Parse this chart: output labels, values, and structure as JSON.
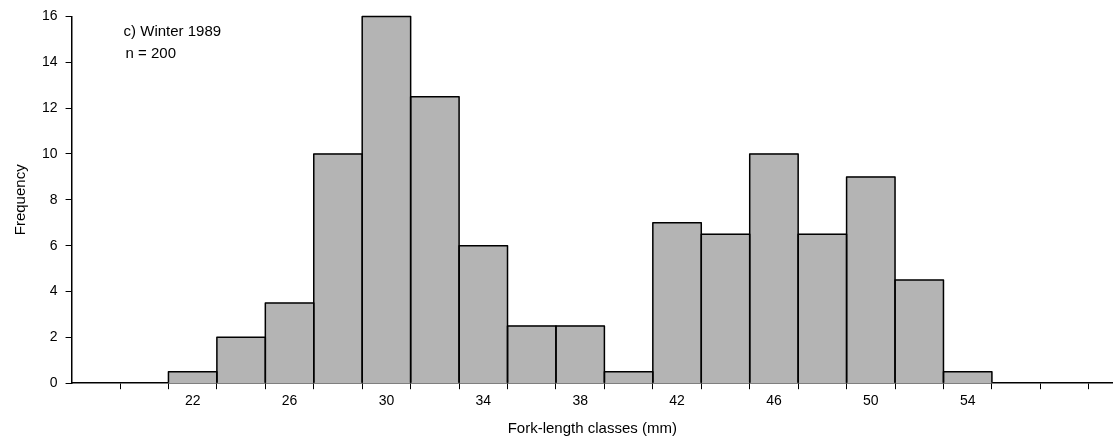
{
  "chart_data": {
    "type": "histogram",
    "xlabel": "Fork-length classes (mm)",
    "ylabel": "Frequency",
    "annotations": [
      "c) Winter 1989",
      "n = 200"
    ],
    "bins": [
      21,
      23,
      25,
      27,
      29,
      31,
      33,
      35,
      37,
      39,
      41,
      43,
      45,
      47,
      49,
      51,
      53,
      55
    ],
    "values": [
      0.5,
      2,
      3.5,
      10,
      16,
      12.5,
      6,
      2.5,
      2.5,
      0.5,
      7,
      6.5,
      10,
      6.5,
      9,
      4.5,
      0.5
    ],
    "color": "#b4b4b4",
    "xlim": [
      17,
      60
    ],
    "xticks": [
      {
        "value": 19,
        "label": null
      },
      {
        "value": 21,
        "label": null
      },
      22,
      {
        "value": 23,
        "label": null
      },
      {
        "value": 25,
        "label": null
      },
      26,
      {
        "value": 27,
        "label": null
      },
      {
        "value": 29,
        "label": null
      },
      30,
      {
        "value": 31,
        "label": null
      },
      {
        "value": 33,
        "label": null
      },
      34,
      {
        "value": 35,
        "label": null
      },
      {
        "value": 37,
        "label": null
      },
      38,
      {
        "value": 39,
        "label": null
      },
      {
        "value": 41,
        "label": null
      },
      42,
      {
        "value": 43,
        "label": null
      },
      {
        "value": 45,
        "label": null
      },
      46,
      {
        "value": 47,
        "label": null
      },
      {
        "value": 49,
        "label": null
      },
      50,
      {
        "value": 51,
        "label": null
      },
      {
        "value": 53,
        "label": null
      },
      54,
      {
        "value": 55,
        "label": null
      },
      {
        "value": 57,
        "label": null
      },
      {
        "value": 59,
        "label": null
      }
    ],
    "ylim": [
      0,
      16
    ],
    "yticks": [
      0,
      2,
      4,
      6,
      8,
      10,
      12,
      14,
      16
    ],
    "grid": false,
    "legend": false
  }
}
